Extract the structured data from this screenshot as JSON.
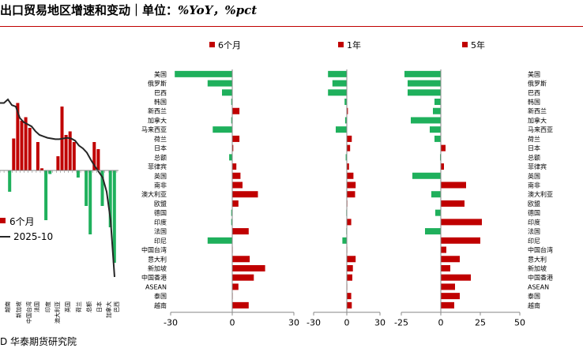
{
  "title": {
    "cn": "出口贸易地区增速和变动｜单位：",
    "en": "%YoY，%pct"
  },
  "footer": "D  华泰期货研究院",
  "colors": {
    "red": "#c00000",
    "green": "#1fb05c",
    "line": "#262626",
    "axis": "#888888"
  },
  "chart_data": [
    {
      "type": "bar",
      "categories": [
        "美国",
        "俄罗斯",
        "巴西",
        "韩国",
        "新西兰",
        "加拿大",
        "马来西亚",
        "荷兰",
        "日本",
        "总额",
        "菲律宾",
        "英国",
        "南非",
        "澳大利亚",
        "欧盟",
        "德国",
        "印度",
        "法国",
        "印尼",
        "中国台湾",
        "意大利",
        "新加坡",
        "中国香港",
        "ASEAN",
        "泰国",
        "越南"
      ],
      "series": [
        {
          "name": "6个月",
          "values": [
            -28,
            -12,
            -5,
            -0.5,
            3.5,
            -0.5,
            -9.5,
            3.5,
            0.5,
            -1.5,
            2,
            4,
            5,
            12.5,
            3,
            -0.5,
            -0.5,
            8,
            -12,
            0,
            8.5,
            16,
            10.5,
            3,
            0,
            8
          ]
        },
        {
          "name": "1年",
          "values": [
            -17,
            -13,
            -17,
            -2,
            1,
            -1.5,
            -10,
            4.5,
            3,
            -1,
            2,
            6,
            8,
            7.5,
            0.5,
            -0.5,
            4,
            -0.5,
            -4,
            0,
            8,
            5.5,
            5,
            0,
            4,
            4.5
          ]
        },
        {
          "name": "5年",
          "values": [
            -23,
            -21,
            -21,
            -4,
            -5,
            -19,
            -7,
            -4,
            3,
            -0.5,
            2,
            -18,
            16,
            -6,
            15,
            -3.5,
            26,
            -10,
            25,
            3.5,
            12,
            6,
            19,
            9,
            12,
            8.5
          ]
        }
      ],
      "xticks": [
        [
          -30,
          0,
          30
        ],
        [
          -30,
          0,
          30
        ],
        [
          -25,
          0,
          25,
          50
        ]
      ],
      "xlim": [
        [
          -30,
          30
        ],
        [
          -30,
          30
        ],
        [
          -25,
          50
        ]
      ]
    },
    {
      "type": "bar",
      "categories_visible": [
        "越南",
        "新加坡",
        "中国台湾",
        "法国",
        "印度",
        "澳大利亚",
        "英国",
        "荷兰",
        "总额",
        "日本",
        "加拿大",
        "巴西",
        "俄罗斯"
      ],
      "series": [
        {
          "name": "6个月",
          "type": "bar"
        },
        {
          "name": "2025-10",
          "type": "line"
        }
      ]
    }
  ]
}
